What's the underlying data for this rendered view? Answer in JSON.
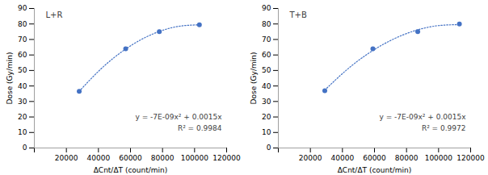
{
  "chart_data": [
    {
      "type": "scatter",
      "title": "L+R",
      "xlabel": "ΔCnt/ΔT (count/min)",
      "ylabel": "Dose (Gy/min)",
      "annotations": [
        "y = -7E-09x² + 0.0015x",
        "R² = 0.9984"
      ],
      "xlim": [
        0,
        120000
      ],
      "ylim": [
        0,
        90
      ],
      "xticks": [
        {
          "value": 0,
          "label": null
        },
        20000,
        40000,
        60000,
        80000,
        100000,
        120000
      ],
      "yticks": [
        0,
        10,
        20,
        30,
        40,
        50,
        60,
        70,
        80,
        90
      ],
      "series": [
        {
          "type": "line",
          "line_style": "dotted",
          "color": "#4472c4",
          "x": [
            28000,
            40500,
            53000,
            65500,
            78000,
            90500,
            103000
          ],
          "values": [
            36.54,
            49.96,
            60.87,
            69.28,
            75.18,
            78.56,
            79.45
          ]
        },
        {
          "type": "scatter",
          "marker": "circle",
          "color": "#4472c4",
          "x": [
            28000,
            57000,
            78000,
            103000
          ],
          "values": [
            36.5,
            64.0,
            75.0,
            79.5
          ]
        }
      ]
    },
    {
      "type": "scatter",
      "title": "T+B",
      "xlabel": "ΔCnt/ΔT (count/min)",
      "ylabel": "Dose (Gy/min)",
      "annotations": [
        "y = -7E-09x² + 0.0015x",
        "R² = 0.9972"
      ],
      "xlim": [
        0,
        120000
      ],
      "ylim": [
        0,
        90
      ],
      "xticks": [
        {
          "value": 0,
          "label": null
        },
        20000,
        40000,
        60000,
        80000,
        100000,
        120000
      ],
      "yticks": [
        0,
        10,
        20,
        30,
        40,
        50,
        60,
        70,
        80,
        90
      ],
      "series": [
        {
          "type": "line",
          "line_style": "dotted",
          "color": "#4472c4",
          "x": [
            29000,
            43000,
            57000,
            71000,
            85000,
            99000,
            113000
          ],
          "values": [
            37.35,
            50.7,
            61.53,
            69.83,
            75.6,
            78.84,
            79.56
          ]
        },
        {
          "type": "scatter",
          "marker": "circle",
          "color": "#4472c4",
          "x": [
            29000,
            59000,
            87000,
            113000
          ],
          "values": [
            37.0,
            64.0,
            75.0,
            80.0
          ]
        }
      ]
    }
  ]
}
